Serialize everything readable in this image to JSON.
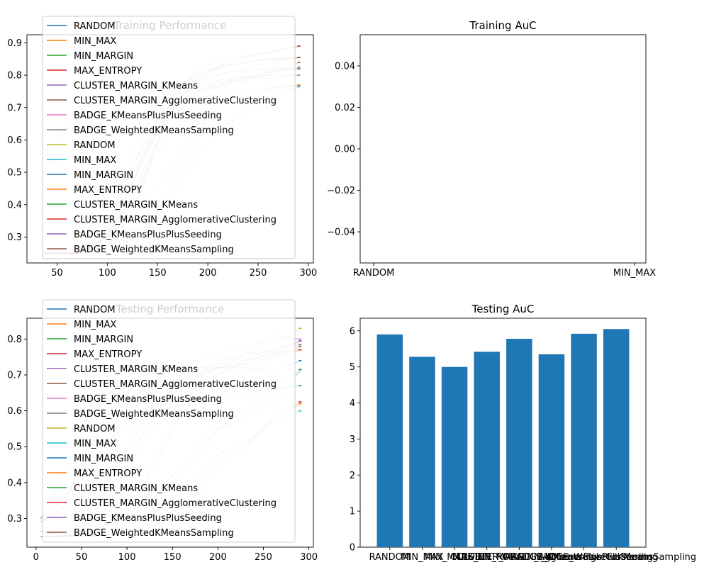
{
  "figure": {
    "legend_entries": [
      "RANDOM",
      "MIN_MAX",
      "MIN_MARGIN",
      "MAX_ENTROPY",
      "CLUSTER_MARGIN_KMeans",
      "CLUSTER_MARGIN_AgglomerativeClustering",
      "BADGE_KMeansPlusPlusSeeding",
      "BADGE_WeightedKMeansSampling",
      "RANDOM",
      "MIN_MAX",
      "MIN_MARGIN",
      "MAX_ENTROPY",
      "CLUSTER_MARGIN_KMeans",
      "CLUSTER_MARGIN_AgglomerativeClustering",
      "BADGE_KMeansPlusPlusSeeding",
      "BADGE_WeightedKMeansSampling"
    ],
    "legend_colors": [
      "#1f77b4",
      "#ff7f0e",
      "#2ca02c",
      "#d62728",
      "#9467bd",
      "#8c564b",
      "#e377c2",
      "#7f7f7f",
      "#bcbd22",
      "#17becf",
      "#1f77b4",
      "#ff7f0e",
      "#2ca02c",
      "#d62728",
      "#9467bd",
      "#8c564b"
    ],
    "bar_color": "#1f77b4"
  },
  "chart_data": [
    {
      "id": "training_performance",
      "type": "line",
      "title": "Training Performance",
      "legend_placement": "top-left",
      "xlim": [
        20,
        305
      ],
      "ylim": [
        0.22,
        0.925
      ],
      "xticks": [
        50,
        100,
        150,
        200,
        250,
        300
      ],
      "yticks": [
        0.3,
        0.4,
        0.5,
        0.6,
        0.7,
        0.8,
        0.9
      ],
      "xtick_labels": [
        "50",
        "100",
        "150",
        "200",
        "250",
        "300"
      ],
      "ytick_labels": [
        "0.3",
        "0.4",
        "0.5",
        "0.6",
        "0.7",
        "0.8",
        "0.9"
      ],
      "series": [
        {
          "name": "RANDOM",
          "x": [
            36,
            70,
            100,
            130,
            160,
            190,
            220,
            260,
            292
          ],
          "y": [
            0.49,
            0.7,
            0.72,
            0.74,
            0.76,
            0.77,
            0.79,
            0.8,
            0.8
          ]
        },
        {
          "name": "MIN_MAX",
          "x": [
            36,
            70,
            100,
            130,
            160,
            190,
            220,
            260,
            292
          ],
          "y": [
            0.25,
            0.25,
            0.35,
            0.55,
            0.66,
            0.71,
            0.74,
            0.76,
            0.77
          ]
        },
        {
          "name": "MIN_MARGIN",
          "x": [
            36,
            70,
            100,
            130,
            160,
            190,
            220,
            260,
            292
          ],
          "y": [
            0.25,
            0.25,
            0.3,
            0.5,
            0.7,
            0.78,
            0.81,
            0.84,
            0.855
          ]
        },
        {
          "name": "MAX_ENTROPY",
          "x": [
            36,
            70,
            100,
            130,
            160,
            190,
            220,
            260,
            292
          ],
          "y": [
            0.25,
            0.25,
            0.27,
            0.4,
            0.7,
            0.82,
            0.85,
            0.87,
            0.89
          ]
        },
        {
          "name": "CLUSTER_MARGIN_KMeans",
          "x": [
            163,
            195,
            225,
            260,
            292
          ],
          "y": [
            0.46,
            0.65,
            0.8,
            0.82,
            0.82
          ]
        },
        {
          "name": "CLUSTER_MARGIN_AgglomerativeClustering",
          "x": [
            36,
            70,
            100,
            130,
            160,
            190,
            220,
            260,
            292
          ],
          "y": [
            0.25,
            0.25,
            0.3,
            0.45,
            0.65,
            0.75,
            0.78,
            0.8,
            0.84
          ]
        },
        {
          "name": "BADGE_KMeansPlusPlusSeeding",
          "x": [
            36,
            70,
            100,
            130,
            160,
            190,
            220,
            260,
            292
          ],
          "y": [
            0.25,
            0.25,
            0.28,
            0.42,
            0.68,
            0.76,
            0.78,
            0.79,
            0.8
          ]
        },
        {
          "name": "BADGE_WeightedKMeansSampling",
          "x": [
            36,
            70,
            100,
            130,
            160,
            190,
            220,
            260,
            292
          ],
          "y": [
            0.25,
            0.25,
            0.32,
            0.6,
            0.74,
            0.8,
            0.83,
            0.85,
            0.855
          ]
        },
        {
          "name": "RANDOM",
          "x": [
            36,
            70,
            100,
            130,
            160,
            190,
            220,
            260,
            292
          ],
          "y": [
            0.25,
            0.25,
            0.33,
            0.52,
            0.68,
            0.75,
            0.77,
            0.81,
            0.855
          ]
        },
        {
          "name": "MIN_MAX",
          "x": [
            36,
            70,
            100,
            130,
            160,
            190,
            220,
            260,
            292
          ],
          "y": [
            0.25,
            0.25,
            0.28,
            0.38,
            0.5,
            0.65,
            0.72,
            0.75,
            0.77
          ]
        },
        {
          "name": "MIN_MARGIN",
          "x": [
            36,
            70,
            100,
            130,
            160,
            190,
            220,
            260,
            292
          ],
          "y": [
            0.25,
            0.25,
            0.26,
            0.3,
            0.42,
            0.56,
            0.65,
            0.73,
            0.765
          ]
        },
        {
          "name": "MAX_ENTROPY",
          "x": [
            36,
            70,
            100,
            130,
            160,
            190,
            220,
            260,
            292
          ],
          "y": [
            0.25,
            0.25,
            0.3,
            0.45,
            0.62,
            0.73,
            0.75,
            0.76,
            0.77
          ]
        },
        {
          "name": "CLUSTER_MARGIN_KMeans",
          "x": [
            36,
            70,
            100,
            130,
            160,
            190,
            220,
            260,
            292
          ],
          "y": [
            0.25,
            0.25,
            0.29,
            0.47,
            0.66,
            0.74,
            0.78,
            0.81,
            0.82
          ]
        },
        {
          "name": "CLUSTER_MARGIN_AgglomerativeClustering",
          "x": [
            36,
            70,
            100,
            130,
            160,
            190,
            220,
            260,
            292
          ],
          "y": [
            0.25,
            0.25,
            0.3,
            0.5,
            0.68,
            0.79,
            0.84,
            0.87,
            0.89
          ]
        },
        {
          "name": "BADGE_KMeansPlusPlusSeeding",
          "x": [
            36,
            70,
            100,
            130,
            160,
            190,
            220,
            260,
            292
          ],
          "y": [
            0.25,
            0.25,
            0.31,
            0.52,
            0.7,
            0.79,
            0.81,
            0.82,
            0.825
          ]
        },
        {
          "name": "BADGE_WeightedKMeansSampling",
          "x": [
            36,
            70,
            100,
            130,
            160,
            190,
            220,
            260,
            292
          ],
          "y": [
            0.25,
            0.25,
            0.32,
            0.55,
            0.72,
            0.81,
            0.83,
            0.85,
            0.855
          ]
        }
      ]
    },
    {
      "id": "training_auc",
      "type": "bar",
      "title": "Training AuC",
      "categories": [
        "RANDOM",
        "MIN_MAX"
      ],
      "values": [
        0,
        0
      ],
      "ylim": [
        -0.055,
        0.055
      ],
      "yticks": [
        -0.04,
        -0.02,
        0.0,
        0.02,
        0.04
      ],
      "ytick_labels": [
        "−0.04",
        "−0.02",
        "0.00",
        "0.02",
        "0.04"
      ]
    },
    {
      "id": "testing_performance",
      "type": "line",
      "title": "Testing Performance",
      "legend_placement": "top-left",
      "xlim": [
        -10,
        305
      ],
      "ylim": [
        0.22,
        0.858
      ],
      "xticks": [
        0,
        50,
        100,
        150,
        200,
        250,
        300
      ],
      "yticks": [
        0.3,
        0.4,
        0.5,
        0.6,
        0.7,
        0.8
      ],
      "xtick_labels": [
        "0",
        "50",
        "100",
        "150",
        "200",
        "250",
        "300"
      ],
      "ytick_labels": [
        "0.3",
        "0.4",
        "0.5",
        "0.6",
        "0.7",
        "0.8"
      ],
      "series": [
        {
          "name": "RANDOM",
          "x": [
            5,
            30,
            60,
            90,
            120,
            150,
            180,
            200,
            230,
            260,
            292
          ],
          "y": [
            0.3,
            0.42,
            0.6,
            0.67,
            0.7,
            0.71,
            0.72,
            0.72,
            0.72,
            0.71,
            0.74
          ]
        },
        {
          "name": "MIN_MAX",
          "x": [
            5,
            30,
            60,
            90,
            120,
            150,
            180,
            200,
            230,
            260,
            292
          ],
          "y": [
            0.29,
            0.33,
            0.5,
            0.6,
            0.64,
            0.66,
            0.68,
            0.7,
            0.72,
            0.74,
            0.77
          ]
        },
        {
          "name": "MIN_MARGIN",
          "x": [
            5,
            30,
            60,
            90,
            120,
            150,
            180,
            200,
            230,
            260,
            292
          ],
          "y": [
            0.3,
            0.35,
            0.48,
            0.54,
            0.58,
            0.61,
            0.63,
            0.64,
            0.65,
            0.66,
            0.67
          ]
        },
        {
          "name": "MAX_ENTROPY",
          "x": [
            5,
            30,
            60,
            90,
            120,
            150,
            180,
            200,
            230,
            260,
            292
          ],
          "y": [
            0.265,
            0.25,
            0.25,
            0.26,
            0.27,
            0.3,
            0.38,
            0.45,
            0.5,
            0.58,
            0.625
          ]
        },
        {
          "name": "CLUSTER_MARGIN_KMeans",
          "x": [
            5,
            30,
            60,
            90,
            120,
            150,
            180,
            200,
            230,
            260,
            292
          ],
          "y": [
            0.3,
            0.3,
            0.5,
            0.65,
            0.7,
            0.72,
            0.74,
            0.76,
            0.78,
            0.8,
            0.8
          ]
        },
        {
          "name": "CLUSTER_MARGIN_AgglomerativeClustering",
          "x": [
            5,
            30,
            60,
            90,
            120,
            150,
            180,
            200,
            230,
            260,
            292
          ],
          "y": [
            0.29,
            0.33,
            0.52,
            0.62,
            0.66,
            0.68,
            0.7,
            0.72,
            0.74,
            0.76,
            0.795
          ]
        },
        {
          "name": "BADGE_KMeansPlusPlusSeeding",
          "x": [
            5,
            30,
            60,
            90,
            120,
            150,
            180,
            200,
            230,
            260,
            292
          ],
          "y": [
            0.29,
            0.32,
            0.45,
            0.55,
            0.6,
            0.64,
            0.68,
            0.72,
            0.76,
            0.81,
            0.8
          ]
        },
        {
          "name": "BADGE_WeightedKMeansSampling",
          "x": [
            5,
            30,
            60,
            90,
            120,
            150,
            180,
            200,
            230,
            260,
            292
          ],
          "y": [
            0.25,
            0.25,
            0.3,
            0.45,
            0.58,
            0.66,
            0.72,
            0.74,
            0.76,
            0.77,
            0.785
          ]
        },
        {
          "name": "RANDOM",
          "x": [
            5,
            30,
            60,
            90,
            120,
            150,
            180,
            200,
            230,
            260,
            292
          ],
          "y": [
            0.25,
            0.25,
            0.28,
            0.38,
            0.52,
            0.62,
            0.7,
            0.73,
            0.76,
            0.79,
            0.83
          ]
        },
        {
          "name": "MIN_MAX",
          "x": [
            5,
            30,
            60,
            90,
            120,
            150,
            180,
            200,
            230,
            260,
            292
          ],
          "y": [
            0.25,
            0.25,
            0.25,
            0.26,
            0.28,
            0.32,
            0.4,
            0.48,
            0.51,
            0.57,
            0.6
          ]
        },
        {
          "name": "MIN_MARGIN",
          "x": [
            5,
            30,
            60,
            90,
            120,
            150,
            180,
            200,
            230,
            260,
            292
          ],
          "y": [
            0.25,
            0.25,
            0.26,
            0.3,
            0.35,
            0.42,
            0.5,
            0.55,
            0.58,
            0.62,
            0.715
          ]
        },
        {
          "name": "MAX_ENTROPY",
          "x": [
            5,
            30,
            60,
            90,
            120,
            150,
            180,
            200,
            230,
            260,
            292
          ],
          "y": [
            0.25,
            0.25,
            0.25,
            0.27,
            0.3,
            0.35,
            0.42,
            0.48,
            0.5,
            0.57,
            0.62
          ]
        },
        {
          "name": "CLUSTER_MARGIN_KMeans",
          "x": [
            5,
            30,
            60,
            90,
            120,
            150,
            180,
            200,
            230,
            260,
            292
          ],
          "y": [
            0.25,
            0.25,
            0.26,
            0.29,
            0.33,
            0.4,
            0.48,
            0.55,
            0.6,
            0.66,
            0.715
          ]
        },
        {
          "name": "CLUSTER_MARGIN_AgglomerativeClustering",
          "x": [
            5,
            30,
            60,
            90,
            120,
            150,
            180,
            200,
            230,
            260,
            292
          ],
          "y": [
            0.265,
            0.25,
            0.26,
            0.3,
            0.4,
            0.55,
            0.65,
            0.7,
            0.74,
            0.76,
            0.77
          ]
        },
        {
          "name": "BADGE_KMeansPlusPlusSeeding",
          "x": [
            5,
            30,
            60,
            90,
            120,
            150,
            180,
            200,
            230,
            260,
            292
          ],
          "y": [
            0.3,
            0.3,
            0.4,
            0.55,
            0.64,
            0.68,
            0.71,
            0.73,
            0.75,
            0.77,
            0.795
          ]
        },
        {
          "name": "BADGE_WeightedKMeansSampling",
          "x": [
            5,
            30,
            60,
            90,
            120,
            150,
            180,
            200,
            230,
            260,
            292
          ],
          "y": [
            0.25,
            0.25,
            0.29,
            0.4,
            0.55,
            0.65,
            0.7,
            0.72,
            0.73,
            0.75,
            0.78
          ]
        }
      ]
    },
    {
      "id": "testing_auc",
      "type": "bar",
      "title": "Testing AuC",
      "categories": [
        "RANDOM",
        "MIN_MAX",
        "MIN_MARGIN",
        "MAX_ENTROPY",
        "CLUSTER_MARGIN_KMeans",
        "CLUSTER_MARGIN_AgglomerativeClustering",
        "BADGE_KMeansPlusPlusSeeding",
        "BADGE_WeightedKMeansSampling"
      ],
      "values": [
        5.9,
        5.28,
        5.0,
        5.42,
        5.78,
        5.35,
        5.92,
        6.05
      ],
      "ylim": [
        0,
        6.35
      ],
      "yticks": [
        0,
        1,
        2,
        3,
        4,
        5,
        6
      ],
      "ytick_labels": [
        "0",
        "1",
        "2",
        "3",
        "4",
        "5",
        "6"
      ]
    }
  ]
}
